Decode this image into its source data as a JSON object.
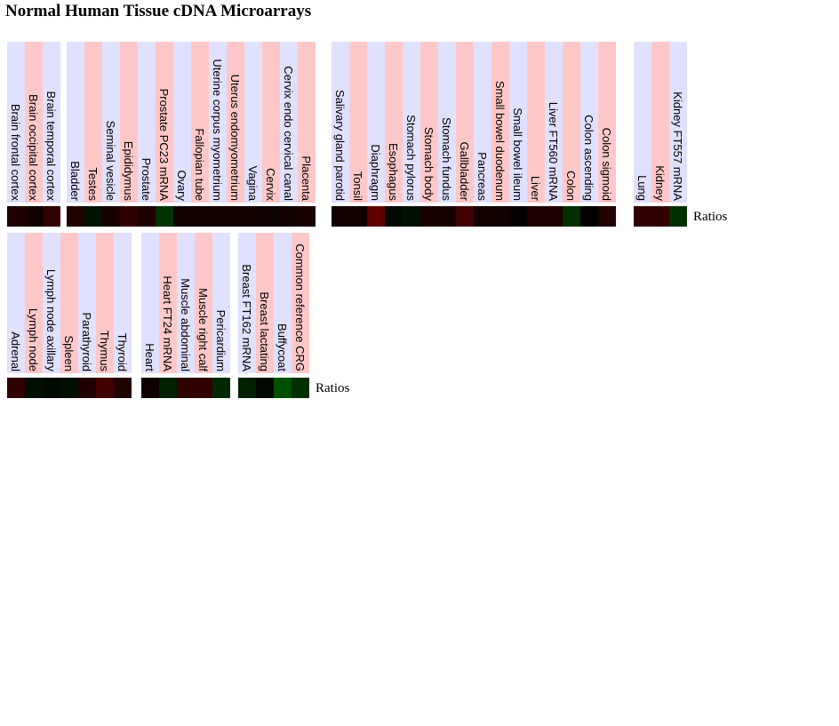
{
  "title": "Normal Human Tissue cDNA Microarrays",
  "rows": [
    {
      "legend": "Ratios",
      "groups": [
        {
          "tissues": [
            {
              "label": "Brain frontal cortex",
              "color": "#200000"
            },
            {
              "label": "Brain occipital cortex",
              "color": "#120000"
            },
            {
              "label": "Brain temporal cortex",
              "color": "#300000"
            }
          ]
        },
        {
          "tissues": [
            {
              "label": "Bladder",
              "color": "#200000"
            },
            {
              "label": "Testes",
              "color": "#001200"
            },
            {
              "label": "Seminal vesicle",
              "color": "#160000"
            },
            {
              "label": "Epididymus",
              "color": "#300000"
            },
            {
              "label": "Prostate",
              "color": "#200000"
            },
            {
              "label": "Prostate PC23 mRNA",
              "color": "#003300"
            },
            {
              "label": "Ovary",
              "color": "#100000"
            },
            {
              "label": "Fallopian tube",
              "color": "#120000"
            },
            {
              "label": "Uterine corpus myometrium",
              "color": "#120000"
            },
            {
              "label": "Uterus endomyometrium",
              "color": "#100000"
            },
            {
              "label": "Vagina",
              "color": "#100000"
            },
            {
              "label": "Cervix",
              "color": "#0c0000"
            },
            {
              "label": "Cervix endo cervical canal",
              "color": "#120000"
            },
            {
              "label": "Placenta",
              "color": "#180000"
            }
          ]
        },
        {
          "tissues": [
            {
              "label": "Salivary gland parotid",
              "color": "#100000"
            },
            {
              "label": "Tonsil",
              "color": "#100000"
            },
            {
              "label": "Diaphragm",
              "color": "#600000"
            },
            {
              "label": "Esophagus",
              "color": "#000800"
            },
            {
              "label": "Stomach pylorus",
              "color": "#001000"
            },
            {
              "label": "Stomach body",
              "color": "#180000"
            },
            {
              "label": "Stomach fundus",
              "color": "#180000"
            },
            {
              "label": "Gallbladder",
              "color": "#400000"
            },
            {
              "label": "Pancreas",
              "color": "#100000"
            },
            {
              "label": "Small bowel duodenum",
              "color": "#100000"
            },
            {
              "label": "Small bowel ileum",
              "color": "#060000"
            },
            {
              "label": "Liver",
              "color": "#200000"
            },
            {
              "label": "Liver FT560 mRNA",
              "color": "#200000"
            },
            {
              "label": "Colon",
              "color": "#003000"
            },
            {
              "label": "Colon ascending",
              "color": "#040000"
            },
            {
              "label": "Colon sigmoid",
              "color": "#200000"
            }
          ]
        },
        {
          "tissues": [
            {
              "label": "Lung",
              "color": "#300000"
            },
            {
              "label": "Kidney",
              "color": "#300000"
            },
            {
              "label": "Kidney FT557 mRNA",
              "color": "#003000"
            }
          ]
        }
      ]
    },
    {
      "legend": "Ratios",
      "groups": [
        {
          "tissues": [
            {
              "label": "Adrenal",
              "color": "#300000"
            },
            {
              "label": "Lymph node",
              "color": "#001000"
            },
            {
              "label": "Lymph node axillary",
              "color": "#000800"
            },
            {
              "label": "Spleen",
              "color": "#001000"
            },
            {
              "label": "Parathyroid",
              "color": "#200000"
            },
            {
              "label": "Thymus",
              "color": "#400000"
            },
            {
              "label": "Thyroid",
              "color": "#200000"
            }
          ]
        },
        {
          "tissues": [
            {
              "label": "Heart",
              "color": "#100000"
            },
            {
              "label": "Heart FT24 mRNA",
              "color": "#002000"
            },
            {
              "label": "Muscle abdominal",
              "color": "#300000"
            },
            {
              "label": "Muscle right calf",
              "color": "#300000"
            },
            {
              "label": "Pericardium",
              "color": "#002800"
            }
          ]
        },
        {
          "tissues": [
            {
              "label": "Breast FT162 mRNA",
              "color": "#002000"
            },
            {
              "label": "Breast lactating",
              "color": "#000800"
            },
            {
              "label": "Buffycoat",
              "color": "#005000"
            },
            {
              "label": "Common reference CRG",
              "color": "#003000"
            }
          ]
        }
      ]
    }
  ]
}
